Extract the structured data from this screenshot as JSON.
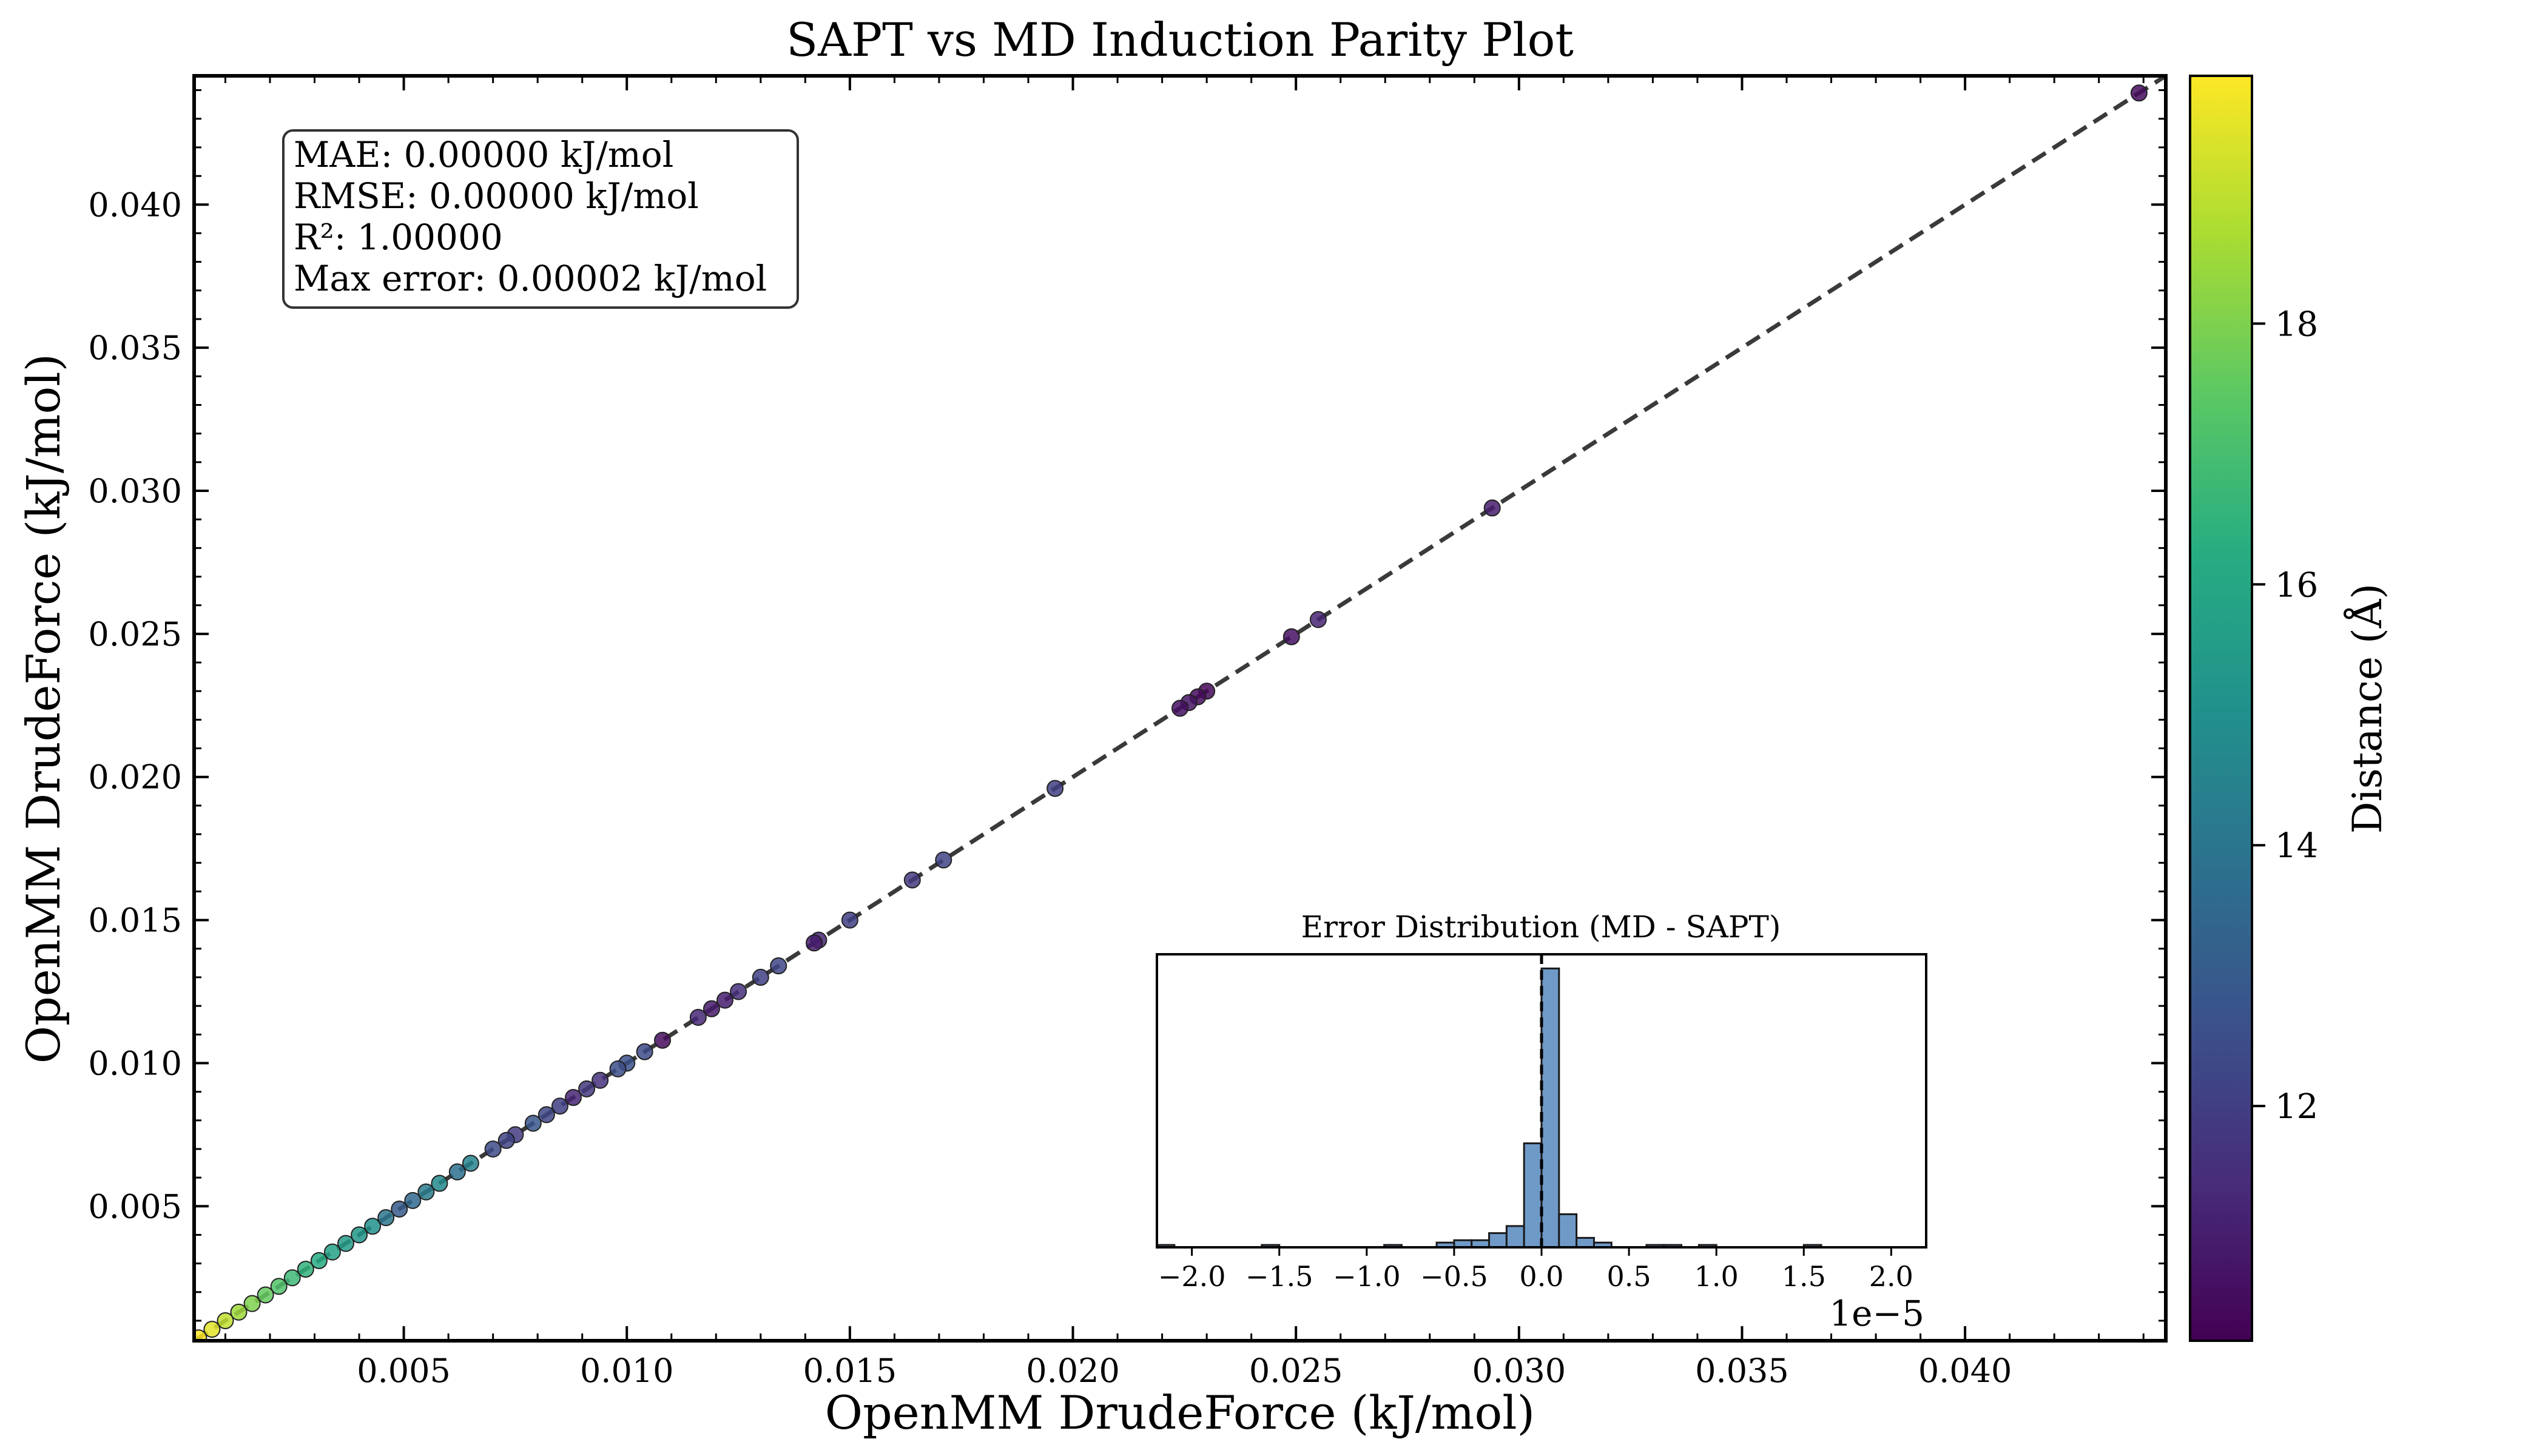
{
  "chart_data": {
    "type": "scatter",
    "title": "SAPT vs MD Induction Parity Plot",
    "xlabel": "OpenMM DrudeForce (kJ/mol)",
    "ylabel": "OpenMM DrudeForce (kJ/mol)",
    "xlim": [
      0.0003,
      0.0445
    ],
    "ylim": [
      0.0003,
      0.0445
    ],
    "xticks": [
      "0.005",
      "0.010",
      "0.015",
      "0.020",
      "0.025",
      "0.030",
      "0.035",
      "0.040"
    ],
    "yticks": [
      "0.005",
      "0.010",
      "0.015",
      "0.020",
      "0.025",
      "0.030",
      "0.035",
      "0.040"
    ],
    "grid": false,
    "identity_line": true,
    "stats_lines": [
      "MAE: 0.00000 kJ/mol",
      "RMSE: 0.00000 kJ/mol",
      "R²: 1.00000",
      "Max error: 0.00002 kJ/mol"
    ],
    "colorbar": {
      "label": "Distance (Å)",
      "colormap": "viridis",
      "range": [
        10.2,
        19.9
      ],
      "ticks": [
        "12",
        "14",
        "16",
        "18"
      ]
    },
    "points": [
      {
        "x": 0.0439,
        "y": 0.0439,
        "d": 10.5
      },
      {
        "x": 0.0294,
        "y": 0.0294,
        "d": 11.0
      },
      {
        "x": 0.0255,
        "y": 0.0255,
        "d": 11.2
      },
      {
        "x": 0.0249,
        "y": 0.0249,
        "d": 10.6
      },
      {
        "x": 0.023,
        "y": 0.023,
        "d": 10.4
      },
      {
        "x": 0.0228,
        "y": 0.0228,
        "d": 10.5
      },
      {
        "x": 0.0226,
        "y": 0.0226,
        "d": 10.7
      },
      {
        "x": 0.0224,
        "y": 0.0224,
        "d": 10.6
      },
      {
        "x": 0.0196,
        "y": 0.0196,
        "d": 12.0
      },
      {
        "x": 0.0171,
        "y": 0.0171,
        "d": 12.2
      },
      {
        "x": 0.0164,
        "y": 0.0164,
        "d": 11.8
      },
      {
        "x": 0.015,
        "y": 0.015,
        "d": 12.0
      },
      {
        "x": 0.0143,
        "y": 0.0143,
        "d": 11.2
      },
      {
        "x": 0.0142,
        "y": 0.0142,
        "d": 11.0
      },
      {
        "x": 0.0134,
        "y": 0.0134,
        "d": 12.3
      },
      {
        "x": 0.013,
        "y": 0.013,
        "d": 12.1
      },
      {
        "x": 0.0125,
        "y": 0.0125,
        "d": 11.5
      },
      {
        "x": 0.0122,
        "y": 0.0122,
        "d": 11.0
      },
      {
        "x": 0.0119,
        "y": 0.0119,
        "d": 10.9
      },
      {
        "x": 0.0116,
        "y": 0.0116,
        "d": 11.3
      },
      {
        "x": 0.0108,
        "y": 0.0108,
        "d": 10.5
      },
      {
        "x": 0.0104,
        "y": 0.0104,
        "d": 12.4
      },
      {
        "x": 0.01,
        "y": 0.01,
        "d": 12.6
      },
      {
        "x": 0.0098,
        "y": 0.0098,
        "d": 12.5
      },
      {
        "x": 0.0094,
        "y": 0.0094,
        "d": 11.6
      },
      {
        "x": 0.0091,
        "y": 0.0091,
        "d": 11.8
      },
      {
        "x": 0.0088,
        "y": 0.0088,
        "d": 11.2
      },
      {
        "x": 0.0085,
        "y": 0.0085,
        "d": 12.0
      },
      {
        "x": 0.0082,
        "y": 0.0082,
        "d": 12.3
      },
      {
        "x": 0.0079,
        "y": 0.0079,
        "d": 12.8
      },
      {
        "x": 0.0075,
        "y": 0.0075,
        "d": 11.9
      },
      {
        "x": 0.0073,
        "y": 0.0073,
        "d": 12.2
      },
      {
        "x": 0.007,
        "y": 0.007,
        "d": 12.4
      },
      {
        "x": 0.0065,
        "y": 0.0065,
        "d": 14.5
      },
      {
        "x": 0.0062,
        "y": 0.0062,
        "d": 13.8
      },
      {
        "x": 0.0058,
        "y": 0.0058,
        "d": 14.8
      },
      {
        "x": 0.0055,
        "y": 0.0055,
        "d": 14.2
      },
      {
        "x": 0.0052,
        "y": 0.0052,
        "d": 13.5
      },
      {
        "x": 0.0049,
        "y": 0.0049,
        "d": 13.0
      },
      {
        "x": 0.0046,
        "y": 0.0046,
        "d": 14.0
      },
      {
        "x": 0.0043,
        "y": 0.0043,
        "d": 15.0
      },
      {
        "x": 0.004,
        "y": 0.004,
        "d": 15.3
      },
      {
        "x": 0.0037,
        "y": 0.0037,
        "d": 15.5
      },
      {
        "x": 0.0034,
        "y": 0.0034,
        "d": 15.8
      },
      {
        "x": 0.0031,
        "y": 0.0031,
        "d": 16.2
      },
      {
        "x": 0.0028,
        "y": 0.0028,
        "d": 16.5
      },
      {
        "x": 0.0025,
        "y": 0.0025,
        "d": 16.8
      },
      {
        "x": 0.0022,
        "y": 0.0022,
        "d": 17.2
      },
      {
        "x": 0.0019,
        "y": 0.0019,
        "d": 17.6
      },
      {
        "x": 0.0016,
        "y": 0.0016,
        "d": 18.0
      },
      {
        "x": 0.0013,
        "y": 0.0013,
        "d": 18.5
      },
      {
        "x": 0.001,
        "y": 0.001,
        "d": 19.0
      },
      {
        "x": 0.0007,
        "y": 0.0007,
        "d": 19.5
      },
      {
        "x": 0.0004,
        "y": 0.0004,
        "d": 19.9
      }
    ],
    "inset": {
      "type": "histogram",
      "title": "Error Distribution (MD - SAPT)",
      "xlim": [
        -2.2,
        2.2
      ],
      "xticks": [
        "−2.0",
        "−1.5",
        "−1.0",
        "−0.5",
        "0.0",
        "0.5",
        "1.0",
        "1.5",
        "2.0"
      ],
      "offset_label": "1e−5",
      "bin_width": 0.1,
      "bins": [
        {
          "x": -2.2,
          "count": 1
        },
        {
          "x": -1.6,
          "count": 1
        },
        {
          "x": -0.9,
          "count": 1
        },
        {
          "x": -0.6,
          "count": 2
        },
        {
          "x": -0.5,
          "count": 3
        },
        {
          "x": -0.4,
          "count": 3
        },
        {
          "x": -0.3,
          "count": 6
        },
        {
          "x": -0.2,
          "count": 9
        },
        {
          "x": -0.1,
          "count": 44
        },
        {
          "x": 0.0,
          "count": 118
        },
        {
          "x": 0.1,
          "count": 14
        },
        {
          "x": 0.2,
          "count": 4
        },
        {
          "x": 0.3,
          "count": 2
        },
        {
          "x": 0.6,
          "count": 1
        },
        {
          "x": 0.7,
          "count": 1
        },
        {
          "x": 0.9,
          "count": 1
        },
        {
          "x": 1.5,
          "count": 1
        }
      ],
      "ymax": 124,
      "mean_line_x": 0.0
    }
  }
}
